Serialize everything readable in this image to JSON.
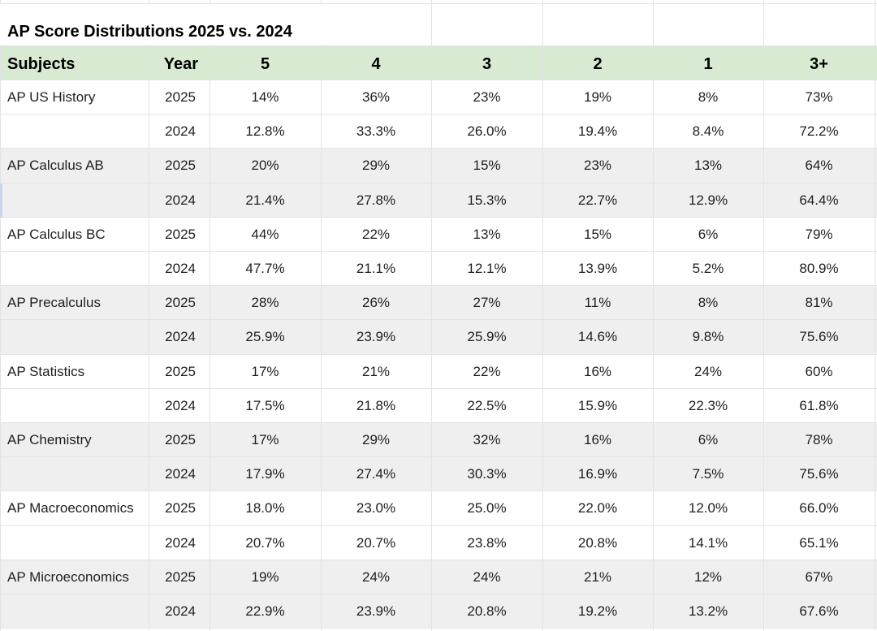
{
  "title": "AP Score Distributions 2025 vs. 2024",
  "columns": [
    "Subjects",
    "Year",
    "5",
    "4",
    "3",
    "2",
    "1",
    "3+"
  ],
  "colors": {
    "header_bg": "#d9ead3",
    "band_bg": "#efefef",
    "grid": "#e2e3e3"
  },
  "rows": [
    {
      "subject": "AP US History",
      "year": "2025",
      "values": [
        "14%",
        "36%",
        "23%",
        "19%",
        "8%",
        "73%"
      ]
    },
    {
      "subject": "",
      "year": "2024",
      "values": [
        "12.8%",
        "33.3%",
        "26.0%",
        "19.4%",
        "8.4%",
        "72.2%"
      ]
    },
    {
      "subject": "AP Calculus AB",
      "year": "2025",
      "values": [
        "20%",
        "29%",
        "15%",
        "23%",
        "13%",
        "64%"
      ]
    },
    {
      "subject": "",
      "year": "2024",
      "values": [
        "21.4%",
        "27.8%",
        "15.3%",
        "22.7%",
        "12.9%",
        "64.4%"
      ]
    },
    {
      "subject": "AP Calculus BC",
      "year": "2025",
      "values": [
        "44%",
        "22%",
        "13%",
        "15%",
        "6%",
        "79%"
      ]
    },
    {
      "subject": "",
      "year": "2024",
      "values": [
        "47.7%",
        "21.1%",
        "12.1%",
        "13.9%",
        "5.2%",
        "80.9%"
      ]
    },
    {
      "subject": "AP Precalculus",
      "year": "2025",
      "values": [
        "28%",
        "26%",
        "27%",
        "11%",
        "8%",
        "81%"
      ]
    },
    {
      "subject": "",
      "year": "2024",
      "values": [
        "25.9%",
        "23.9%",
        "25.9%",
        "14.6%",
        "9.8%",
        "75.6%"
      ]
    },
    {
      "subject": "AP Statistics",
      "year": "2025",
      "values": [
        "17%",
        "21%",
        "22%",
        "16%",
        "24%",
        "60%"
      ]
    },
    {
      "subject": "",
      "year": "2024",
      "values": [
        "17.5%",
        "21.8%",
        "22.5%",
        "15.9%",
        "22.3%",
        "61.8%"
      ]
    },
    {
      "subject": "AP Chemistry",
      "year": "2025",
      "values": [
        "17%",
        "29%",
        "32%",
        "16%",
        "6%",
        "78%"
      ]
    },
    {
      "subject": "",
      "year": "2024",
      "values": [
        "17.9%",
        "27.4%",
        "30.3%",
        "16.9%",
        "7.5%",
        "75.6%"
      ]
    },
    {
      "subject": "AP Macroeconomics",
      "year": "2025",
      "values": [
        "18.0%",
        "23.0%",
        "25.0%",
        "22.0%",
        "12.0%",
        "66.0%"
      ]
    },
    {
      "subject": "",
      "year": "2024",
      "values": [
        "20.7%",
        "20.7%",
        "23.8%",
        "20.8%",
        "14.1%",
        "65.1%"
      ]
    },
    {
      "subject": "AP Microeconomics",
      "year": "2025",
      "values": [
        "19%",
        "24%",
        "24%",
        "21%",
        "12%",
        "67%"
      ]
    },
    {
      "subject": "",
      "year": "2024",
      "values": [
        "22.9%",
        "23.9%",
        "20.8%",
        "19.2%",
        "13.2%",
        "67.6%"
      ]
    }
  ]
}
